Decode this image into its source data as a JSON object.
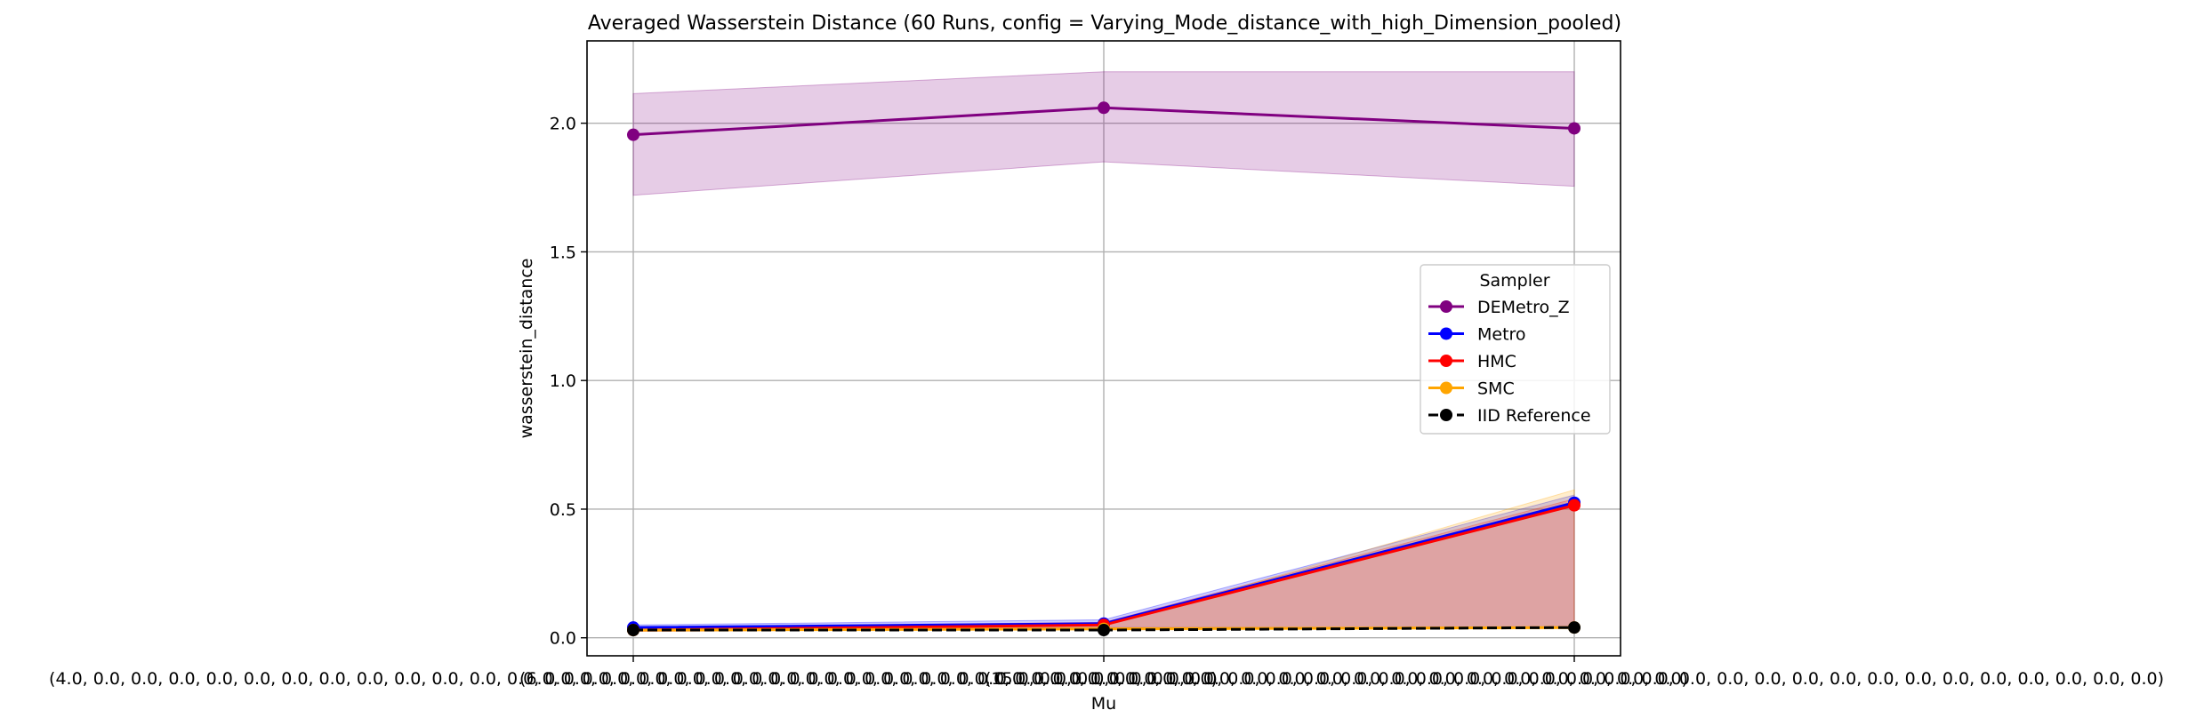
{
  "chart_data": {
    "type": "line",
    "title": "Averaged Wasserstein Distance (60 Runs, config = Varying_Mode_distance_with_high_Dimension_pooled)",
    "xlabel": "Mu",
    "ylabel": "wasserstein_distance",
    "categories": [
      "(4.0, 0.0, 0.0, 0.0, 0.0, 0.0, 0.0, 0.0, 0.0, 0.0, 0.0, 0.0, 0.0, 0.0, 0.0, 0.0, 0.0, 0.0, 0.0, 0.0, 0.0, 0.0, 0.0, 0.0, 0.0, 0.0, 0.0, 0.0, 0.0, 0.0, 0.0)",
      "(6.0, 0.0, 0.0, 0.0, 0.0, 0.0, 0.0, 0.0, 0.0, 0.0, 0.0, 0.0, 0.0, 0.0, 0.0, 0.0, 0.0, 0.0, 0.0, 0.0, 0.0, 0.0, 0.0, 0.0, 0.0, 0.0, 0.0, 0.0, 0.0, 0.0, 0.0)",
      "(15.0, 0.0, 0.0, 0.0, 0.0, 0.0, 0.0, 0.0, 0.0, 0.0, 0.0, 0.0, 0.0, 0.0, 0.0, 0.0, 0.0, 0.0, 0.0, 0.0, 0.0, 0.0, 0.0, 0.0, 0.0, 0.0, 0.0, 0.0, 0.0, 0.0, 0.0)"
    ],
    "ylim": [
      -0.07,
      2.32
    ],
    "yticks": [
      "0.0",
      "0.5",
      "1.0",
      "1.5",
      "2.0"
    ],
    "grid": true,
    "legend": {
      "title": "Sampler",
      "placement": "center-right"
    },
    "series": [
      {
        "name": "DEMetro_Z",
        "color": "#800080",
        "dash": false,
        "values": [
          1.955,
          2.06,
          1.98
        ],
        "lower": [
          1.72,
          1.85,
          1.755
        ],
        "upper": [
          2.115,
          2.2,
          2.2
        ]
      },
      {
        "name": "Metro",
        "color": "#0000ff",
        "dash": false,
        "values": [
          0.04,
          0.055,
          0.525
        ],
        "lower": [
          0.03,
          0.04,
          0.04
        ],
        "upper": [
          0.05,
          0.07,
          0.555
        ]
      },
      {
        "name": "HMC",
        "color": "#ff0000",
        "dash": false,
        "values": [
          0.03,
          0.05,
          0.515
        ],
        "lower": [
          0.025,
          0.035,
          0.04
        ],
        "upper": [
          0.04,
          0.06,
          0.54
        ]
      },
      {
        "name": "SMC",
        "color": "#ffa500",
        "dash": false,
        "values": [
          0.03,
          0.035,
          0.04
        ],
        "lower": [
          0.025,
          0.03,
          0.035
        ],
        "upper": [
          0.035,
          0.045,
          0.575
        ]
      },
      {
        "name": "IID Reference",
        "color": "#000000",
        "dash": true,
        "values": [
          0.03,
          0.03,
          0.04
        ],
        "lower": null,
        "upper": null
      }
    ]
  }
}
